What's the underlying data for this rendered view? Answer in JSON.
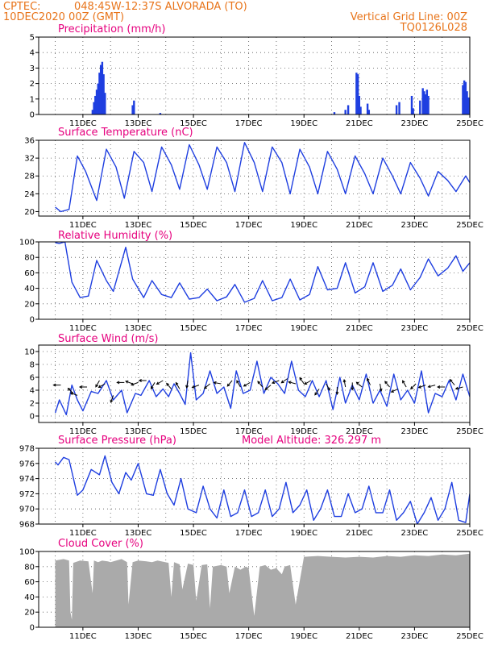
{
  "header": {
    "source": "CPTEC:",
    "location": "048:45W-12:37S  ALVORADA (TO)",
    "init_time": "10DEC2020 00Z (GMT)",
    "grid_note": "Vertical Grid Line: 00Z",
    "code": "TQ0126L028"
  },
  "colors": {
    "series": "#1f3fe0",
    "title": "#e6007e",
    "header": "#e8741a",
    "cloud": "#aaaaaa",
    "wind_arrow": "#000000"
  },
  "chart_data": [
    {
      "type": "bar",
      "title": "Precipitation (mm/h)",
      "x_tick_labels": [
        "11DEC",
        "13DEC",
        "15DEC",
        "17DEC",
        "19DEC",
        "21DEC",
        "23DEC",
        "25DEC"
      ],
      "x_days": [
        0,
        15
      ],
      "ylim": [
        0,
        5
      ],
      "y_ticks": [
        0,
        1,
        2,
        3,
        4,
        5
      ],
      "events": [
        {
          "day": 1.35,
          "value": 0.3
        },
        {
          "day": 1.4,
          "value": 0.8
        },
        {
          "day": 1.45,
          "value": 1.2
        },
        {
          "day": 1.5,
          "value": 1.6
        },
        {
          "day": 1.55,
          "value": 2.0
        },
        {
          "day": 1.6,
          "value": 2.7
        },
        {
          "day": 1.65,
          "value": 3.2
        },
        {
          "day": 1.7,
          "value": 3.4
        },
        {
          "day": 1.75,
          "value": 2.6
        },
        {
          "day": 1.8,
          "value": 1.4
        },
        {
          "day": 2.8,
          "value": 0.6
        },
        {
          "day": 2.85,
          "value": 0.9
        },
        {
          "day": 3.8,
          "value": 0.1
        },
        {
          "day": 10.1,
          "value": 0.15
        },
        {
          "day": 10.5,
          "value": 0.3
        },
        {
          "day": 10.6,
          "value": 0.6
        },
        {
          "day": 10.9,
          "value": 2.7
        },
        {
          "day": 10.95,
          "value": 2.6
        },
        {
          "day": 11.0,
          "value": 1.2
        },
        {
          "day": 11.05,
          "value": 0.5
        },
        {
          "day": 11.3,
          "value": 0.7
        },
        {
          "day": 11.35,
          "value": 0.3
        },
        {
          "day": 12.35,
          "value": 0.6
        },
        {
          "day": 12.45,
          "value": 0.8
        },
        {
          "day": 12.9,
          "value": 1.2
        },
        {
          "day": 12.95,
          "value": 0.4
        },
        {
          "day": 13.2,
          "value": 0.9
        },
        {
          "day": 13.3,
          "value": 1.7
        },
        {
          "day": 13.35,
          "value": 1.5
        },
        {
          "day": 13.4,
          "value": 1.3
        },
        {
          "day": 13.45,
          "value": 1.6
        },
        {
          "day": 13.5,
          "value": 1.2
        },
        {
          "day": 14.75,
          "value": 1.9
        },
        {
          "day": 14.8,
          "value": 2.2
        },
        {
          "day": 14.85,
          "value": 2.1
        },
        {
          "day": 14.9,
          "value": 1.5
        },
        {
          "day": 14.95,
          "value": 1.1
        }
      ]
    },
    {
      "type": "line",
      "title": "Surface Temperature (nC)",
      "x_tick_labels": [
        "11DEC",
        "13DEC",
        "15DEC",
        "17DEC",
        "19DEC",
        "21DEC",
        "23DEC",
        "25DEC"
      ],
      "ylim": [
        19,
        36
      ],
      "y_ticks": [
        20,
        24,
        28,
        32,
        36
      ],
      "x": [
        0,
        0.2,
        0.5,
        0.8,
        1.1,
        1.5,
        1.85,
        2.2,
        2.5,
        2.85,
        3.2,
        3.5,
        3.85,
        4.2,
        4.5,
        4.85,
        5.2,
        5.5,
        5.85,
        6.2,
        6.5,
        6.85,
        7.2,
        7.5,
        7.85,
        8.2,
        8.5,
        8.85,
        9.2,
        9.5,
        9.85,
        10.2,
        10.5,
        10.85,
        11.2,
        11.5,
        11.85,
        12.2,
        12.5,
        12.85,
        13.2,
        13.5,
        13.85,
        14.2,
        14.5,
        14.85,
        15
      ],
      "y": [
        21,
        20,
        20.5,
        32.5,
        29,
        22.5,
        34,
        30,
        23,
        33.5,
        31,
        24.5,
        34.5,
        30.5,
        25,
        35,
        30.5,
        25,
        34.5,
        31,
        24.5,
        35.5,
        31,
        24.5,
        34.5,
        31,
        24,
        34,
        30,
        24,
        33.5,
        29.5,
        24,
        32.5,
        28.5,
        24,
        32,
        28,
        24,
        31,
        27.5,
        23.5,
        29,
        27,
        24.5,
        28,
        26.5
      ]
    },
    {
      "type": "line",
      "title": "Relative Humidity (%)",
      "x_tick_labels": [
        "11DEC",
        "13DEC",
        "15DEC",
        "17DEC",
        "19DEC",
        "21DEC",
        "23DEC",
        "25DEC"
      ],
      "ylim": [
        0,
        100
      ],
      "y_ticks": [
        0,
        20,
        40,
        60,
        80,
        100
      ],
      "x": [
        0,
        0.15,
        0.35,
        0.6,
        0.9,
        1.2,
        1.5,
        1.85,
        2.1,
        2.55,
        2.8,
        3.2,
        3.5,
        3.85,
        4.2,
        4.5,
        4.85,
        5.2,
        5.5,
        5.85,
        6.2,
        6.5,
        6.85,
        7.2,
        7.5,
        7.85,
        8.2,
        8.5,
        8.85,
        9.2,
        9.5,
        9.85,
        10.2,
        10.5,
        10.85,
        11.2,
        11.5,
        11.85,
        12.2,
        12.5,
        12.85,
        13.2,
        13.5,
        13.85,
        14.2,
        14.5,
        14.75,
        15
      ],
      "y": [
        99,
        98,
        100,
        48,
        28,
        30,
        76,
        50,
        36,
        93,
        52,
        28,
        50,
        32,
        28,
        47,
        26,
        28,
        39,
        24,
        29,
        45,
        22,
        27,
        50,
        24,
        28,
        52,
        25,
        32,
        68,
        38,
        40,
        73,
        34,
        42,
        73,
        36,
        44,
        65,
        38,
        54,
        78,
        56,
        66,
        82,
        62,
        73
      ]
    },
    {
      "type": "line",
      "title": "Surface Wind (m/s)",
      "x_tick_labels": [
        "11DEC",
        "13DEC",
        "15DEC",
        "17DEC",
        "19DEC",
        "21DEC",
        "23DEC",
        "25DEC"
      ],
      "ylim": [
        -1,
        11
      ],
      "y_ticks": [
        0,
        2,
        4,
        6,
        8,
        10
      ],
      "x": [
        0,
        0.15,
        0.4,
        0.6,
        0.8,
        1.0,
        1.3,
        1.55,
        1.85,
        2.1,
        2.4,
        2.6,
        2.9,
        3.1,
        3.4,
        3.65,
        3.9,
        4.1,
        4.3,
        4.5,
        4.7,
        4.9,
        5.1,
        5.35,
        5.6,
        5.85,
        6.1,
        6.35,
        6.55,
        6.8,
        7.05,
        7.3,
        7.55,
        7.8,
        8.05,
        8.3,
        8.55,
        8.8,
        9.05,
        9.3,
        9.55,
        9.8,
        10.05,
        10.3,
        10.5,
        10.75,
        11.0,
        11.25,
        11.5,
        11.75,
        12.0,
        12.25,
        12.5,
        12.75,
        13.0,
        13.25,
        13.5,
        13.75,
        14.0,
        14.25,
        14.5,
        14.75,
        15
      ],
      "y": [
        0.5,
        2.5,
        0.2,
        4.8,
        2.5,
        0.8,
        3.8,
        3.5,
        5.5,
        2.5,
        4.0,
        0.5,
        3.5,
        3.2,
        5.5,
        3.0,
        4.2,
        3.0,
        5.0,
        3.5,
        1.8,
        9.8,
        2.5,
        3.5,
        7.0,
        3.5,
        4.5,
        1.2,
        7.0,
        3.5,
        4.0,
        8.5,
        3.5,
        6.0,
        5.0,
        3.5,
        8.5,
        4.0,
        3.0,
        5.5,
        3.0,
        5.5,
        1.0,
        6.0,
        2.0,
        4.8,
        2.5,
        6.5,
        2.0,
        4.0,
        1.5,
        6.5,
        2.5,
        4.0,
        2.0,
        7.0,
        0.5,
        3.5,
        3.0,
        5.5,
        2.5,
        6.5,
        3.0
      ],
      "arrows": [
        {
          "day": 0.2,
          "speed": 4.8,
          "dir_deg": 180
        },
        {
          "day": 0.65,
          "speed": 3.5,
          "dir_deg": 225
        },
        {
          "day": 0.8,
          "speed": 3.2,
          "dir_deg": 200
        },
        {
          "day": 1.15,
          "speed": 4.5,
          "dir_deg": 180
        },
        {
          "day": 1.6,
          "speed": 5.5,
          "dir_deg": 120
        },
        {
          "day": 1.8,
          "speed": 5.0,
          "dir_deg": 150
        },
        {
          "day": 2.1,
          "speed": 3.2,
          "dir_deg": 110
        },
        {
          "day": 2.5,
          "speed": 5.2,
          "dir_deg": 180
        },
        {
          "day": 2.8,
          "speed": 5.0,
          "dir_deg": 200
        },
        {
          "day": 3.0,
          "speed": 5.2,
          "dir_deg": 160
        },
        {
          "day": 3.3,
          "speed": 5.5,
          "dir_deg": 180
        },
        {
          "day": 3.6,
          "speed": 5.2,
          "dir_deg": 120
        },
        {
          "day": 3.9,
          "speed": 5.5,
          "dir_deg": 150
        },
        {
          "day": 4.2,
          "speed": 4.2,
          "dir_deg": 230
        },
        {
          "day": 4.5,
          "speed": 4.2,
          "dir_deg": 240
        },
        {
          "day": 4.8,
          "speed": 5.5,
          "dir_deg": 100
        },
        {
          "day": 5.2,
          "speed": 4.8,
          "dir_deg": 160
        },
        {
          "day": 5.6,
          "speed": 5.0,
          "dir_deg": 140
        },
        {
          "day": 6.0,
          "speed": 5.0,
          "dir_deg": 190
        },
        {
          "day": 6.4,
          "speed": 5.5,
          "dir_deg": 130
        },
        {
          "day": 6.7,
          "speed": 4.5,
          "dir_deg": 240
        },
        {
          "day": 7.05,
          "speed": 5.2,
          "dir_deg": 150
        },
        {
          "day": 7.5,
          "speed": 4.5,
          "dir_deg": 230
        },
        {
          "day": 7.8,
          "speed": 4.8,
          "dir_deg": 140
        },
        {
          "day": 8.1,
          "speed": 5.5,
          "dir_deg": 160
        },
        {
          "day": 8.4,
          "speed": 5.8,
          "dir_deg": 145
        },
        {
          "day": 8.7,
          "speed": 5.0,
          "dir_deg": 195
        },
        {
          "day": 9.0,
          "speed": 5.0,
          "dir_deg": 235
        },
        {
          "day": 9.25,
          "speed": 5.5,
          "dir_deg": 150
        },
        {
          "day": 9.55,
          "speed": 4.2,
          "dir_deg": 125
        },
        {
          "day": 9.8,
          "speed": 5.0,
          "dir_deg": 60
        },
        {
          "day": 10.2,
          "speed": 4.5,
          "dir_deg": 90
        },
        {
          "day": 10.5,
          "speed": 4.5,
          "dir_deg": 260
        },
        {
          "day": 10.75,
          "speed": 5.2,
          "dir_deg": 90
        },
        {
          "day": 11.1,
          "speed": 4.5,
          "dir_deg": 220
        },
        {
          "day": 11.4,
          "speed": 4.8,
          "dir_deg": 245
        },
        {
          "day": 11.75,
          "speed": 5.0,
          "dir_deg": 80
        },
        {
          "day": 12.1,
          "speed": 4.5,
          "dir_deg": 230
        },
        {
          "day": 12.4,
          "speed": 4.2,
          "dir_deg": 155
        },
        {
          "day": 12.7,
          "speed": 4.5,
          "dir_deg": 240
        },
        {
          "day": 13.05,
          "speed": 5.0,
          "dir_deg": 135
        },
        {
          "day": 13.4,
          "speed": 4.8,
          "dir_deg": 160
        },
        {
          "day": 13.75,
          "speed": 4.8,
          "dir_deg": 165
        },
        {
          "day": 14.1,
          "speed": 4.5,
          "dir_deg": 180
        },
        {
          "day": 14.45,
          "speed": 4.8,
          "dir_deg": 230
        },
        {
          "day": 14.75,
          "speed": 4.5,
          "dir_deg": 165
        }
      ]
    },
    {
      "type": "line",
      "title": "Surface Pressure (hPa)",
      "subtitle": "Model Altitude: 326.297 m",
      "x_tick_labels": [
        "11DEC",
        "13DEC",
        "15DEC",
        "17DEC",
        "19DEC",
        "21DEC",
        "23DEC",
        "25DEC"
      ],
      "ylim": [
        968,
        978
      ],
      "y_ticks": [
        968,
        970,
        972,
        974,
        976,
        978
      ],
      "x": [
        0,
        0.1,
        0.3,
        0.5,
        0.8,
        1.0,
        1.3,
        1.6,
        1.8,
        2.05,
        2.3,
        2.55,
        2.75,
        3.0,
        3.3,
        3.55,
        3.8,
        4.05,
        4.3,
        4.55,
        4.8,
        5.1,
        5.35,
        5.6,
        5.85,
        6.1,
        6.35,
        6.6,
        6.85,
        7.1,
        7.35,
        7.6,
        7.85,
        8.1,
        8.35,
        8.6,
        8.85,
        9.1,
        9.35,
        9.6,
        9.85,
        10.1,
        10.35,
        10.6,
        10.85,
        11.1,
        11.35,
        11.6,
        11.85,
        12.1,
        12.35,
        12.6,
        12.85,
        13.1,
        13.35,
        13.6,
        13.85,
        14.1,
        14.35,
        14.6,
        14.85,
        15
      ],
      "y": [
        976.2,
        975.8,
        976.8,
        976.5,
        971.8,
        972.5,
        975.2,
        974.5,
        977.0,
        973.5,
        972.0,
        974.8,
        973.8,
        976.0,
        972.0,
        971.8,
        975.2,
        972.0,
        970.5,
        974.0,
        970.0,
        969.5,
        973.0,
        970.0,
        968.8,
        972.5,
        969.0,
        969.5,
        972.5,
        969.0,
        969.5,
        972.5,
        969.0,
        970.0,
        973.5,
        969.5,
        970.5,
        972.5,
        968.5,
        970.0,
        972.5,
        969.0,
        969.0,
        972.0,
        969.5,
        970.0,
        973.0,
        969.5,
        969.5,
        972.5,
        968.5,
        969.5,
        971.0,
        968.0,
        969.5,
        971.5,
        968.5,
        970.0,
        973.5,
        968.5,
        968.2,
        972.0
      ]
    },
    {
      "type": "area",
      "title": "Cloud Cover (%)",
      "x_tick_labels": [
        "11DEC",
        "13DEC",
        "15DEC",
        "17DEC",
        "19DEC",
        "21DEC",
        "23DEC",
        "25DEC"
      ],
      "ylim": [
        0,
        100
      ],
      "y_ticks": [
        0,
        20,
        40,
        60,
        80,
        100
      ],
      "x": [
        0,
        0.3,
        0.5,
        0.55,
        0.6,
        0.65,
        0.9,
        1.2,
        1.35,
        1.4,
        1.55,
        1.7,
        1.9,
        2.0,
        2.4,
        2.6,
        2.65,
        2.8,
        3.0,
        3.3,
        3.5,
        3.7,
        4.1,
        4.2,
        4.3,
        4.5,
        4.6,
        4.8,
        5.0,
        5.1,
        5.3,
        5.5,
        5.6,
        5.7,
        6.0,
        6.2,
        6.3,
        6.5,
        6.7,
        6.9,
        7.0,
        7.2,
        7.4,
        7.6,
        7.8,
        8.0,
        8.2,
        8.3,
        8.5,
        8.7,
        9.0,
        9.5,
        10.0,
        10.5,
        11.0,
        11.5,
        12.0,
        12.5,
        13.0,
        13.5,
        14.0,
        14.5,
        15.0
      ],
      "y": [
        88,
        90,
        88,
        20,
        10,
        85,
        88,
        87,
        45,
        88,
        86,
        88,
        87,
        86,
        90,
        86,
        30,
        86,
        88,
        87,
        86,
        88,
        85,
        40,
        86,
        83,
        50,
        84,
        82,
        35,
        82,
        83,
        25,
        80,
        82,
        80,
        45,
        80,
        76,
        80,
        78,
        15,
        80,
        82,
        76,
        78,
        70,
        80,
        82,
        30,
        93,
        94,
        93,
        92,
        93,
        92,
        94,
        93,
        95,
        94,
        96,
        95,
        97
      ]
    }
  ]
}
